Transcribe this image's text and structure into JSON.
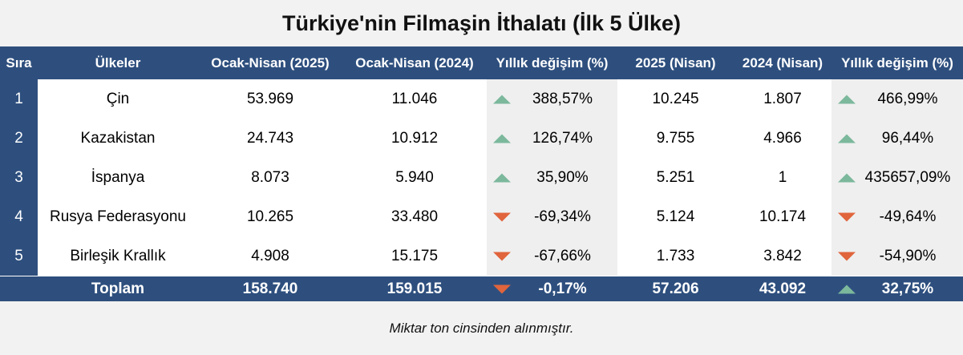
{
  "title": "Türkiye'nin Filmaşin İthalatı (İlk 5 Ülke)",
  "colors": {
    "header_bg": "#2e4f7e",
    "up_arrow": "#7cb89c",
    "down_arrow": "#e0643c"
  },
  "table": {
    "headers": [
      "Sıra",
      "Ülkeler",
      "Ocak-Nisan (2025)",
      "Ocak-Nisan (2024)",
      "Yıllık değişim (%)",
      "2025 (Nisan)",
      "2024 (Nisan)",
      "Yıllık değişim (%)"
    ],
    "rows": [
      {
        "rank": "1",
        "country": "Çin",
        "jan_apr_2025": "53.969",
        "jan_apr_2024": "11.046",
        "yoy_1": "388,57%",
        "yoy_1_dir": "up-arrow-icon",
        "apr_2025": "10.245",
        "apr_2024": "1.807",
        "yoy_2": "466,99%",
        "yoy_2_dir": "up-arrow-icon"
      },
      {
        "rank": "2",
        "country": "Kazakistan",
        "jan_apr_2025": "24.743",
        "jan_apr_2024": "10.912",
        "yoy_1": "126,74%",
        "yoy_1_dir": "up-arrow-icon",
        "apr_2025": "9.755",
        "apr_2024": "4.966",
        "yoy_2": "96,44%",
        "yoy_2_dir": "up-arrow-icon"
      },
      {
        "rank": "3",
        "country": "İspanya",
        "jan_apr_2025": "8.073",
        "jan_apr_2024": "5.940",
        "yoy_1": "35,90%",
        "yoy_1_dir": "up-arrow-icon",
        "apr_2025": "5.251",
        "apr_2024": "1",
        "yoy_2": "435657,09%",
        "yoy_2_dir": "up-arrow-icon"
      },
      {
        "rank": "4",
        "country": "Rusya Federasyonu",
        "jan_apr_2025": "10.265",
        "jan_apr_2024": "33.480",
        "yoy_1": "-69,34%",
        "yoy_1_dir": "down-arrow-icon",
        "apr_2025": "5.124",
        "apr_2024": "10.174",
        "yoy_2": "-49,64%",
        "yoy_2_dir": "down-arrow-icon"
      },
      {
        "rank": "5",
        "country": "Birleşik Krallık",
        "jan_apr_2025": "4.908",
        "jan_apr_2024": "15.175",
        "yoy_1": "-67,66%",
        "yoy_1_dir": "down-arrow-icon",
        "apr_2025": "1.733",
        "apr_2024": "3.842",
        "yoy_2": "-54,90%",
        "yoy_2_dir": "down-arrow-icon"
      }
    ],
    "total": {
      "label": "Toplam",
      "jan_apr_2025": "158.740",
      "jan_apr_2024": "159.015",
      "yoy_1": "-0,17%",
      "yoy_1_dir": "down-arrow-icon",
      "apr_2025": "57.206",
      "apr_2024": "43.092",
      "yoy_2": "32,75%",
      "yoy_2_dir": "up-arrow-icon"
    }
  },
  "footnote": "Miktar  ton cinsinden alınmıştır."
}
